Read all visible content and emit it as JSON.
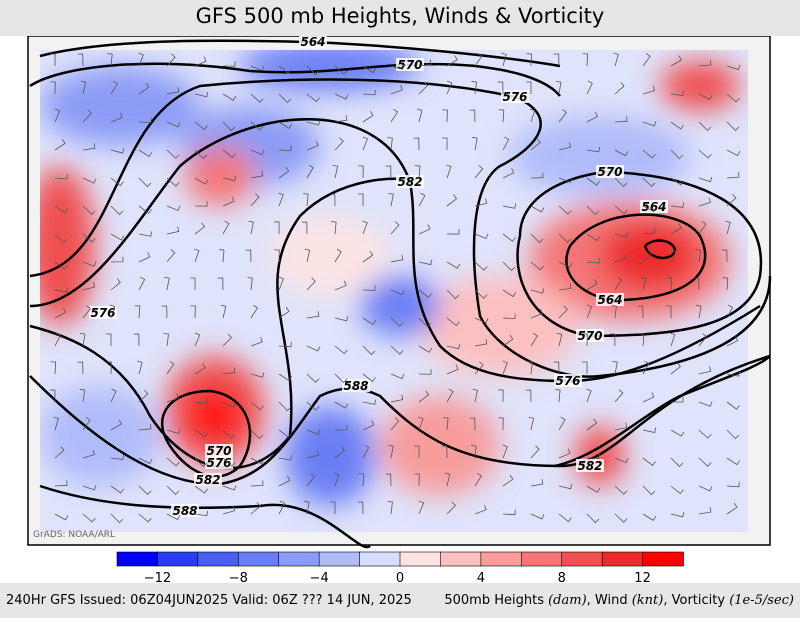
{
  "header": {
    "title": "GFS 500 mb Heights, Winds & Vorticity"
  },
  "contour_labels": [
    "564",
    "570",
    "576",
    "582",
    "570",
    "564",
    "564",
    "570",
    "576",
    "582",
    "576",
    "588",
    "570",
    "576",
    "582",
    "588"
  ],
  "watermark": "GrADS: NOAA/ARL",
  "colorbar": {
    "ticks": [
      "−12",
      "−8",
      "−4",
      "0",
      "4",
      "8",
      "12"
    ],
    "colors": [
      "#0000ff",
      "#2a3cf0",
      "#4a5ef0",
      "#6a7ef4",
      "#8c9cf6",
      "#b0bcfa",
      "#d8defe",
      "#ffe2e2",
      "#fcc0c0",
      "#f89c9c",
      "#f47676",
      "#f05050",
      "#ec2a2a",
      "#ff0000"
    ]
  },
  "footer": {
    "left": "240Hr GFS Issued: 06Z04JUN2025 Valid: 06Z ??? 14 JUN, 2025",
    "right_prefix": "500mb Heights ",
    "right_unit1": "(dam)",
    "right_mid1": ", Wind ",
    "right_unit2": "(knt)",
    "right_mid2": ", Vorticity ",
    "right_unit3": "(1e-5/sec)"
  }
}
